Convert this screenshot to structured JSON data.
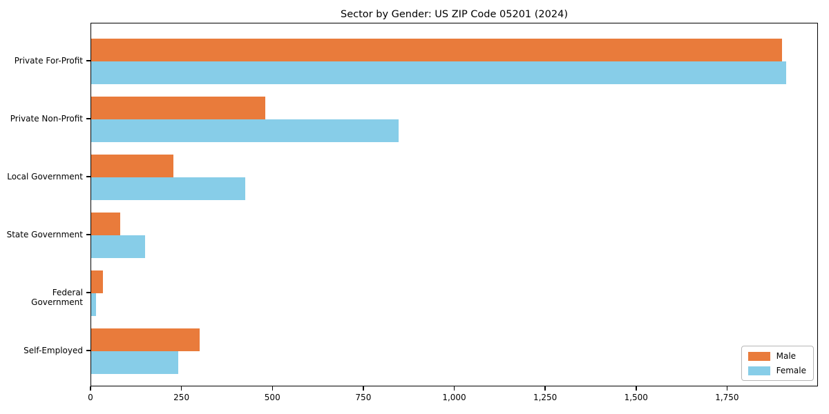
{
  "chart_data": {
    "type": "bar",
    "orientation": "horizontal",
    "title": "Sector by Gender: US ZIP Code 05201 (2024)",
    "categories": [
      "Private For-Profit",
      "Private Non-Profit",
      "Local Government",
      "State Government",
      "Federal Government",
      "Self-Employed"
    ],
    "series": [
      {
        "name": "Male",
        "color": "#E97B3B",
        "values": [
          1900,
          478,
          225,
          79,
          33,
          299
        ]
      },
      {
        "name": "Female",
        "color": "#87CDE8",
        "values": [
          1910,
          845,
          423,
          149,
          14,
          239
        ]
      }
    ],
    "xlim": [
      0,
      2000
    ],
    "x_ticks": [
      0,
      250,
      500,
      750,
      1000,
      1250,
      1500,
      1750
    ],
    "x_tick_labels": [
      "0",
      "250",
      "500",
      "750",
      "1,000",
      "1,250",
      "1,500",
      "1,750"
    ],
    "ylabel": "",
    "xlabel": "",
    "grid": false,
    "legend": {
      "position": "lower right",
      "entries": [
        {
          "label": "Male",
          "color": "#E97B3B"
        },
        {
          "label": "Female",
          "color": "#87CDE8"
        }
      ]
    }
  }
}
